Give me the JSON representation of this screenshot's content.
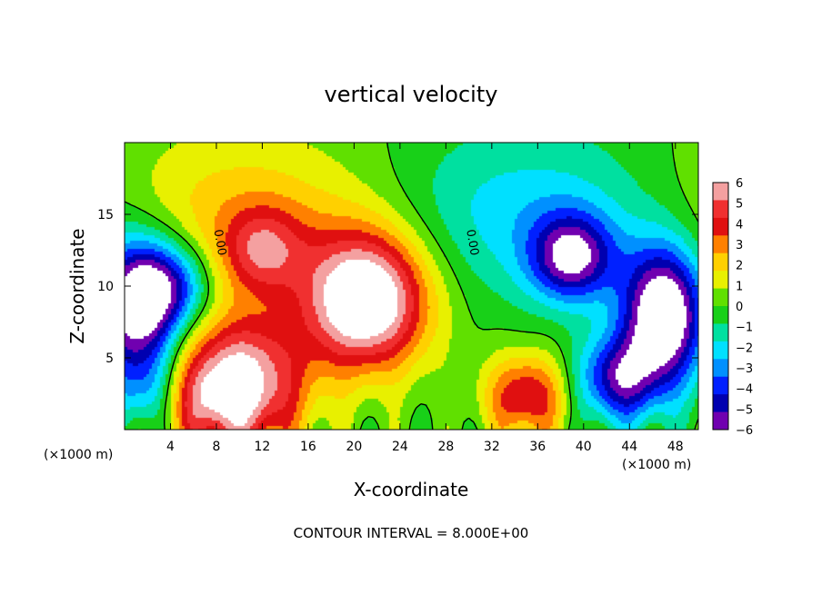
{
  "chart_data": {
    "type": "heatmap",
    "title": "vertical velocity",
    "xlabel": "X-coordinate",
    "ylabel": "Z-coordinate",
    "x_unit_label": "(×1000 m)",
    "x_unit_label_right": "(×1000 m)",
    "xlim": [
      0,
      50
    ],
    "ylim": [
      0,
      20
    ],
    "x_ticks": [
      4,
      8,
      12,
      16,
      20,
      24,
      28,
      32,
      36,
      40,
      44,
      48
    ],
    "x_tick_labels": [
      "4",
      "8",
      "12",
      "16",
      "20",
      "24",
      "28",
      "32",
      "36",
      "40",
      "44",
      "48"
    ],
    "y_ticks": [
      5,
      10,
      15
    ],
    "y_tick_labels": [
      "5",
      "10",
      "15"
    ],
    "color_scale": {
      "min": -6,
      "max": 6,
      "labels": [
        "6",
        "5",
        "4",
        "3",
        "2",
        "1",
        "0",
        "−1",
        "−2",
        "−3",
        "−4",
        "−5",
        "−6"
      ],
      "colors": [
        "#f4a0a0",
        "#f03030",
        "#e01010",
        "#ff8000",
        "#ffd000",
        "#e8f000",
        "#60e000",
        "#18d018",
        "#00e0a0",
        "#00e0ff",
        "#0090ff",
        "#0020ff",
        "#0000b0",
        "#7000b0"
      ],
      "saturated_color": "#ffffff"
    },
    "contour_label": "0.00",
    "contour_interval_text": "CONTOUR INTERVAL = 8.000E+00",
    "features": [
      {
        "kind": "updraft",
        "x": 21,
        "z": 9,
        "value": 8
      },
      {
        "kind": "updraft",
        "x": 10,
        "z": 3,
        "value": 7
      },
      {
        "kind": "updraft",
        "x": 12,
        "z": 12.5,
        "value": 3.5
      },
      {
        "kind": "updraft",
        "x": 35,
        "z": 2.3,
        "value": 4.5
      },
      {
        "kind": "updraft",
        "x": 5,
        "z": 2.2,
        "value": 3.5
      },
      {
        "kind": "downdraft",
        "x": 47,
        "z": 8,
        "value": -8
      },
      {
        "kind": "downdraft",
        "x": 39,
        "z": 12,
        "value": -5.5
      },
      {
        "kind": "downdraft",
        "x": 1,
        "z": 8.5,
        "value": -7
      },
      {
        "kind": "downdraft",
        "x": 4,
        "z": 10,
        "value": -4
      },
      {
        "kind": "downdraft",
        "x": 43,
        "z": 3.5,
        "value": -5
      },
      {
        "kind": "downdraft",
        "x": 3,
        "z": 2.5,
        "value": -4
      }
    ]
  }
}
